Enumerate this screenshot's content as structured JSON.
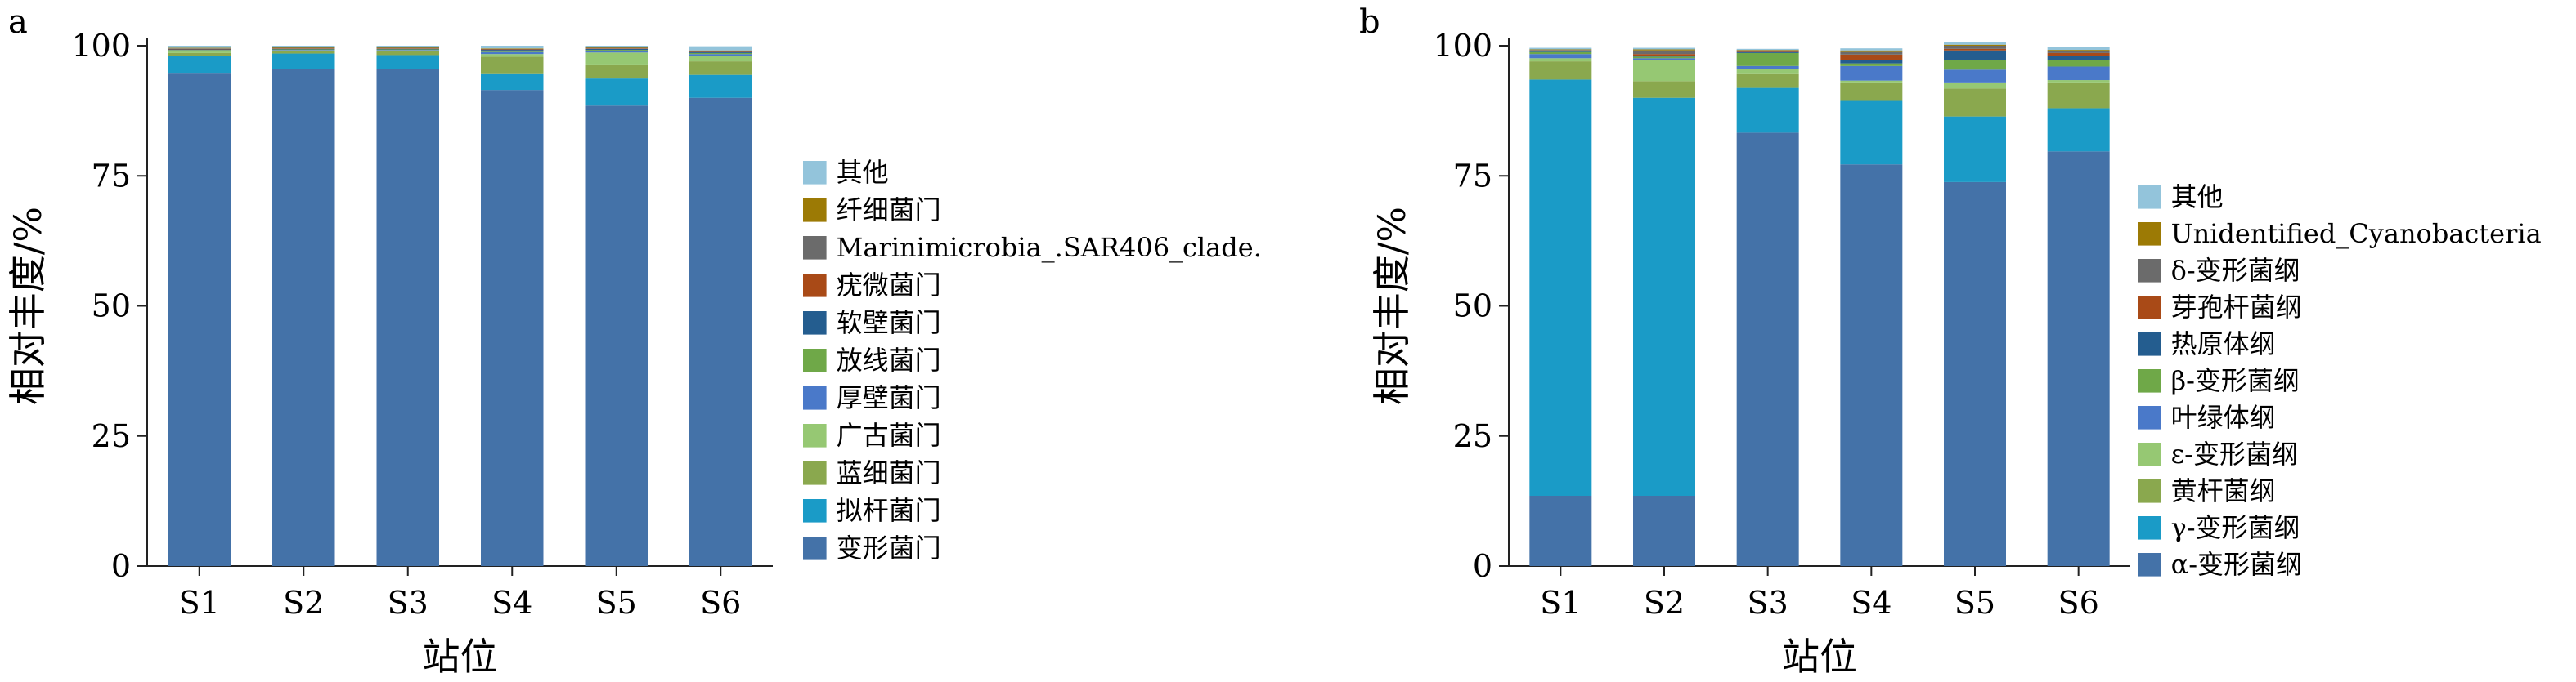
{
  "chart_data": [
    {
      "type": "bar",
      "stacked": true,
      "panel_label": "a",
      "xlabel": "站位",
      "ylabel": "相对丰度/%",
      "ylim": [
        0,
        100
      ],
      "yticks": [
        "0",
        "25",
        "50",
        "75",
        "100"
      ],
      "categories": [
        "S1",
        "S2",
        "S3",
        "S4",
        "S5",
        "S6"
      ],
      "legend_position": "right",
      "series": [
        {
          "name": "变形菌门",
          "color": "#4472a8",
          "values": [
            94.8,
            95.6,
            95.5,
            91.5,
            88.5,
            90.0
          ]
        },
        {
          "name": "拟杆菌门",
          "color": "#1a9bc7",
          "values": [
            3.2,
            2.9,
            2.7,
            3.2,
            5.2,
            4.4
          ]
        },
        {
          "name": "蓝细菌门",
          "color": "#8aa84e",
          "values": [
            0.6,
            0.4,
            0.7,
            3.2,
            2.7,
            2.6
          ]
        },
        {
          "name": "广古菌门",
          "color": "#96c873",
          "values": [
            0.3,
            0.2,
            0.2,
            0.5,
            2.3,
            1.1
          ]
        },
        {
          "name": "厚壁菌门",
          "color": "#4a79c9",
          "values": [
            0.2,
            0.1,
            0.1,
            0.4,
            0.3,
            0.3
          ]
        },
        {
          "name": "放线菌门",
          "color": "#6fa848",
          "values": [
            0.1,
            0.1,
            0.1,
            0.2,
            0.2,
            0.2
          ]
        },
        {
          "name": "软壁菌门",
          "color": "#245d8f",
          "values": [
            0.1,
            0.1,
            0.1,
            0.2,
            0.2,
            0.2
          ]
        },
        {
          "name": "疣微菌门",
          "color": "#a94a17",
          "values": [
            0.1,
            0.1,
            0.1,
            0.1,
            0.1,
            0.1
          ]
        },
        {
          "name": "Marinimicrobia_.SAR406_clade.",
          "color": "#6b6b6b",
          "values": [
            0.1,
            0.1,
            0.1,
            0.1,
            0.1,
            0.1
          ]
        },
        {
          "name": "纤细菌门",
          "color": "#9c7a05",
          "values": [
            0.1,
            0.1,
            0.1,
            0.1,
            0.1,
            0.1
          ]
        },
        {
          "name": "其他",
          "color": "#93c4db",
          "values": [
            0.4,
            0.3,
            0.3,
            0.5,
            0.3,
            0.8
          ]
        }
      ]
    },
    {
      "type": "bar",
      "stacked": true,
      "panel_label": "b",
      "xlabel": "站位",
      "ylabel": "相对丰度/%",
      "ylim": [
        0,
        100
      ],
      "yticks": [
        "0",
        "25",
        "50",
        "75",
        "100"
      ],
      "categories": [
        "S1",
        "S2",
        "S3",
        "S4",
        "S5",
        "S6"
      ],
      "legend_position": "right",
      "series": [
        {
          "name": "α-变形菌纲",
          "color": "#4472a8",
          "values": [
            13.5,
            13.5,
            83.3,
            77.2,
            73.8,
            79.7
          ]
        },
        {
          "name": "γ-变形菌纲",
          "color": "#1a9bc7",
          "values": [
            80.0,
            76.5,
            8.6,
            12.2,
            12.6,
            8.3
          ]
        },
        {
          "name": "黄杆菌纲",
          "color": "#8aa84e",
          "values": [
            3.5,
            3.2,
            2.8,
            3.4,
            5.4,
            4.8
          ]
        },
        {
          "name": "ε-变形菌纲",
          "color": "#96c873",
          "values": [
            0.6,
            4.0,
            0.8,
            0.5,
            1.0,
            0.6
          ]
        },
        {
          "name": "叶绿体纲",
          "color": "#4a79c9",
          "values": [
            0.8,
            0.4,
            0.6,
            2.8,
            2.6,
            2.6
          ]
        },
        {
          "name": "β-变形菌纲",
          "color": "#6fa848",
          "values": [
            0.4,
            0.3,
            2.5,
            0.5,
            1.8,
            1.2
          ]
        },
        {
          "name": "热原体纲",
          "color": "#245d8f",
          "values": [
            0.2,
            0.2,
            0.2,
            0.6,
            1.9,
            0.9
          ]
        },
        {
          "name": "芽孢杆菌纲",
          "color": "#a94a17",
          "values": [
            0.1,
            0.3,
            0.1,
            1.1,
            0.3,
            0.5
          ]
        },
        {
          "name": "δ-变形菌纲",
          "color": "#6b6b6b",
          "values": [
            0.1,
            0.7,
            0.2,
            0.5,
            0.6,
            0.4
          ]
        },
        {
          "name": "Unidentified_Cyanobacteria",
          "color": "#9c7a05",
          "values": [
            0.1,
            0.2,
            0.1,
            0.3,
            0.2,
            0.2
          ]
        },
        {
          "name": "其他",
          "color": "#93c4db",
          "values": [
            0.3,
            0.3,
            0.2,
            0.4,
            0.5,
            0.5
          ]
        }
      ]
    }
  ]
}
